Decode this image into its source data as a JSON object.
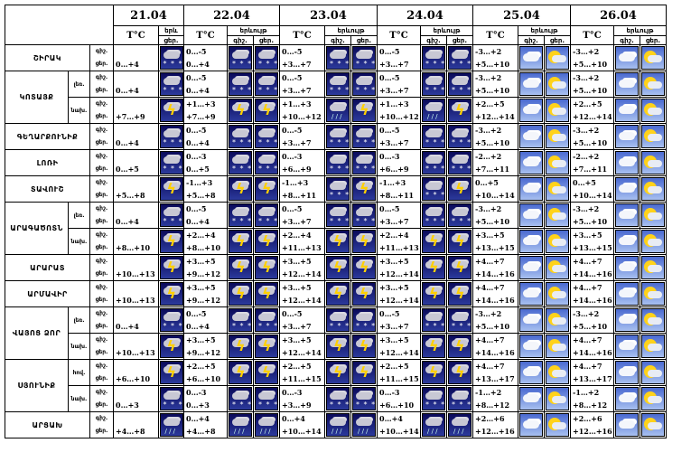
{
  "header": {
    "dates": [
      "21.04",
      "22.04",
      "23.04",
      "24.04",
      "25.04",
      "26.04"
    ],
    "temp_label": "T°C",
    "weather_label": "երևույթ",
    "weather_label_short": "երև",
    "night_short": "գիշ.",
    "day_short": "ցեր."
  },
  "rows": [
    {
      "region": "ՇԻՐԱԿ",
      "sub": "",
      "n": "գիշ.",
      "d": "ցեր.",
      "first": "0…+4",
      "days": [
        {
          "t": [
            "0…-5",
            "0…+4"
          ]
        },
        {
          "t": [
            "0…-5",
            "+3…+7"
          ]
        },
        {
          "t": [
            "0…-5",
            "+3…+7"
          ]
        },
        {
          "t": [
            "-3…+2",
            "+5…+10"
          ]
        },
        {
          "t": [
            "-3…+2",
            "+5…+10"
          ]
        }
      ]
    },
    {
      "region": "ԿՈՏԱՅՔ",
      "sub": "լեռ.",
      "n": "գիշ.",
      "d": "ցեր.",
      "first": "0…+4",
      "days": [
        {
          "t": [
            "0…-5",
            "0…+4"
          ]
        },
        {
          "t": [
            "0…-5",
            "+3…+7"
          ]
        },
        {
          "t": [
            "0…-5",
            "+3…+7"
          ]
        },
        {
          "t": [
            "-3…+2",
            "+5…+10"
          ]
        },
        {
          "t": [
            "-3…+2",
            "+5…+10"
          ]
        }
      ]
    },
    {
      "region": "",
      "sub": "նախ.",
      "n": "գիշ.",
      "d": "ցեր.",
      "first": "+7…+9",
      "days": [
        {
          "t": [
            "+1…+3",
            "+7…+9"
          ]
        },
        {
          "t": [
            "+1…+3",
            "+10…+12"
          ]
        },
        {
          "t": [
            "+1…+3",
            "+10…+12"
          ]
        },
        {
          "t": [
            "+2…+5",
            "+12…+14"
          ]
        },
        {
          "t": [
            "+2…+5",
            "+12…+14"
          ]
        }
      ]
    },
    {
      "region": "ԳԵՂԱՐՔՈՒՆԻՔ",
      "sub": "",
      "n": "գիշ.",
      "d": "ցեր.",
      "first": "0…+4",
      "days": [
        {
          "t": [
            "0…-5",
            "0…+4"
          ]
        },
        {
          "t": [
            "0…-5",
            "+3…+7"
          ]
        },
        {
          "t": [
            "0…-5",
            "+3…+7"
          ]
        },
        {
          "t": [
            "-3…+2",
            "+5…+10"
          ]
        },
        {
          "t": [
            "-3…+2",
            "+5…+10"
          ]
        }
      ]
    },
    {
      "region": "ԼՈՌԻ",
      "sub": "",
      "n": "գիշ.",
      "d": "ցեր.",
      "first": "0…+5",
      "days": [
        {
          "t": [
            "0…-3",
            "0…+5"
          ]
        },
        {
          "t": [
            "0…-3",
            "+6…+9"
          ]
        },
        {
          "t": [
            "0…-3",
            "+6…+9"
          ]
        },
        {
          "t": [
            "-2…+2",
            "+7…+11"
          ]
        },
        {
          "t": [
            "-2…+2",
            "+7…+11"
          ]
        }
      ]
    },
    {
      "region": "ՏԱՎՈՒՇ",
      "sub": "",
      "n": "գիշ.",
      "d": "ցեր.",
      "first": "+5…+8",
      "days": [
        {
          "t": [
            "-1…+3",
            "+5…+8"
          ]
        },
        {
          "t": [
            "-1…+3",
            "+8…+11"
          ]
        },
        {
          "t": [
            "-1…+3",
            "+8…+11"
          ]
        },
        {
          "t": [
            "0…+5",
            "+10…+14"
          ]
        },
        {
          "t": [
            "0…+5",
            "+10…+14"
          ]
        }
      ]
    },
    {
      "region": "ԱՐԱԳԱԾՈՏՆ",
      "sub": "լեռ.",
      "n": "գիշ.",
      "d": "ցեր.",
      "first": "0…+4",
      "days": [
        {
          "t": [
            "0…-5",
            "0…+4"
          ]
        },
        {
          "t": [
            "0…-5",
            "+3…+7"
          ]
        },
        {
          "t": [
            "0…-5",
            "+3…+7"
          ]
        },
        {
          "t": [
            "-3…+2",
            "+5…+10"
          ]
        },
        {
          "t": [
            "-3…+2",
            "+5…+10"
          ]
        }
      ]
    },
    {
      "region": "",
      "sub": "նախ.",
      "n": "գիշ.",
      "d": "ցեր.",
      "first": "+8…+10",
      "days": [
        {
          "t": [
            "+2…+4",
            "+8…+10"
          ]
        },
        {
          "t": [
            "+2…+4",
            "+11…+13"
          ]
        },
        {
          "t": [
            "+2…+4",
            "+11…+13"
          ]
        },
        {
          "t": [
            "+3…+5",
            "+13…+15"
          ]
        },
        {
          "t": [
            "+3…+5",
            "+13…+15"
          ]
        }
      ]
    },
    {
      "region": "ԱՐԱՐԱՏ",
      "sub": "",
      "n": "գիշ.",
      "d": "ցեր.",
      "first": "+10…+13",
      "days": [
        {
          "t": [
            "+3…+5",
            "+9…+12"
          ]
        },
        {
          "t": [
            "+3…+5",
            "+12…+14"
          ]
        },
        {
          "t": [
            "+3…+5",
            "+12…+14"
          ]
        },
        {
          "t": [
            "+4…+7",
            "+14…+16"
          ]
        },
        {
          "t": [
            "+4…+7",
            "+14…+16"
          ]
        }
      ]
    },
    {
      "region": "ԱՐՄԱՎԻՐ",
      "sub": "",
      "n": "գիշ.",
      "d": "ցեր.",
      "first": "+10…+13",
      "days": [
        {
          "t": [
            "+3…+5",
            "+9…+12"
          ]
        },
        {
          "t": [
            "+3…+5",
            "+12…+14"
          ]
        },
        {
          "t": [
            "+3…+5",
            "+12…+14"
          ]
        },
        {
          "t": [
            "+4…+7",
            "+14…+16"
          ]
        },
        {
          "t": [
            "+4…+7",
            "+14…+16"
          ]
        }
      ]
    },
    {
      "region": "ՎԱՅՈՑ ՁՈՐ",
      "sub": "լեռ.",
      "n": "գիշ.",
      "d": "ցեր.",
      "first": "0…+4",
      "days": [
        {
          "t": [
            "0…-5",
            "0…+4"
          ]
        },
        {
          "t": [
            "0…-5",
            "+3…+7"
          ]
        },
        {
          "t": [
            "0…-5",
            "+3…+7"
          ]
        },
        {
          "t": [
            "-3…+2",
            "+5…+10"
          ]
        },
        {
          "t": [
            "-3…+2",
            "+5…+10"
          ]
        }
      ]
    },
    {
      "region": "",
      "sub": "նախ.",
      "n": "գիշ.",
      "d": "ցեր.",
      "first": "+10…+13",
      "days": [
        {
          "t": [
            "+3…+5",
            "+9…+12"
          ]
        },
        {
          "t": [
            "+3…+5",
            "+12…+14"
          ]
        },
        {
          "t": [
            "+3…+5",
            "+12…+14"
          ]
        },
        {
          "t": [
            "+4…+7",
            "+14…+16"
          ]
        },
        {
          "t": [
            "+4…+7",
            "+14…+16"
          ]
        }
      ]
    },
    {
      "region": "ՍՅՈՒՆԻՔ",
      "sub": "հով.",
      "n": "գիշ.",
      "d": "ցեր.",
      "first": "+6…+10",
      "days": [
        {
          "t": [
            "+2…+5",
            "+6…+10"
          ]
        },
        {
          "t": [
            "+2…+5",
            "+11…+15"
          ]
        },
        {
          "t": [
            "+2…+5",
            "+11…+15"
          ]
        },
        {
          "t": [
            "+4…+7",
            "+13…+17"
          ]
        },
        {
          "t": [
            "+4…+7",
            "+13…+17"
          ]
        }
      ]
    },
    {
      "region": "",
      "sub": "նախ.",
      "n": "գիշ.",
      "d": "ցեր.",
      "first": "0…+3",
      "days": [
        {
          "t": [
            "0…-3",
            "0…+3"
          ]
        },
        {
          "t": [
            "0…-3",
            "+3…+9"
          ]
        },
        {
          "t": [
            "0…-3",
            "+6…+10"
          ]
        },
        {
          "t": [
            "-1…+2",
            "+8…+12"
          ]
        },
        {
          "t": [
            "-1…+2",
            "+8…+12"
          ]
        }
      ]
    },
    {
      "region": "ԱՐՑԱԽ",
      "sub": "",
      "n": "գիշ.",
      "d": "ցեր.",
      "first": "+4…+8",
      "days": [
        {
          "t": [
            "0…+4",
            "+4…+8"
          ]
        },
        {
          "t": [
            "0…+4",
            "+10…+14"
          ]
        },
        {
          "t": [
            "0…+4",
            "+10…+14"
          ]
        },
        {
          "t": [
            "+2…+6",
            "+12…+16"
          ]
        },
        {
          "t": [
            "+2…+6",
            "+12…+16"
          ]
        }
      ]
    }
  ]
}
